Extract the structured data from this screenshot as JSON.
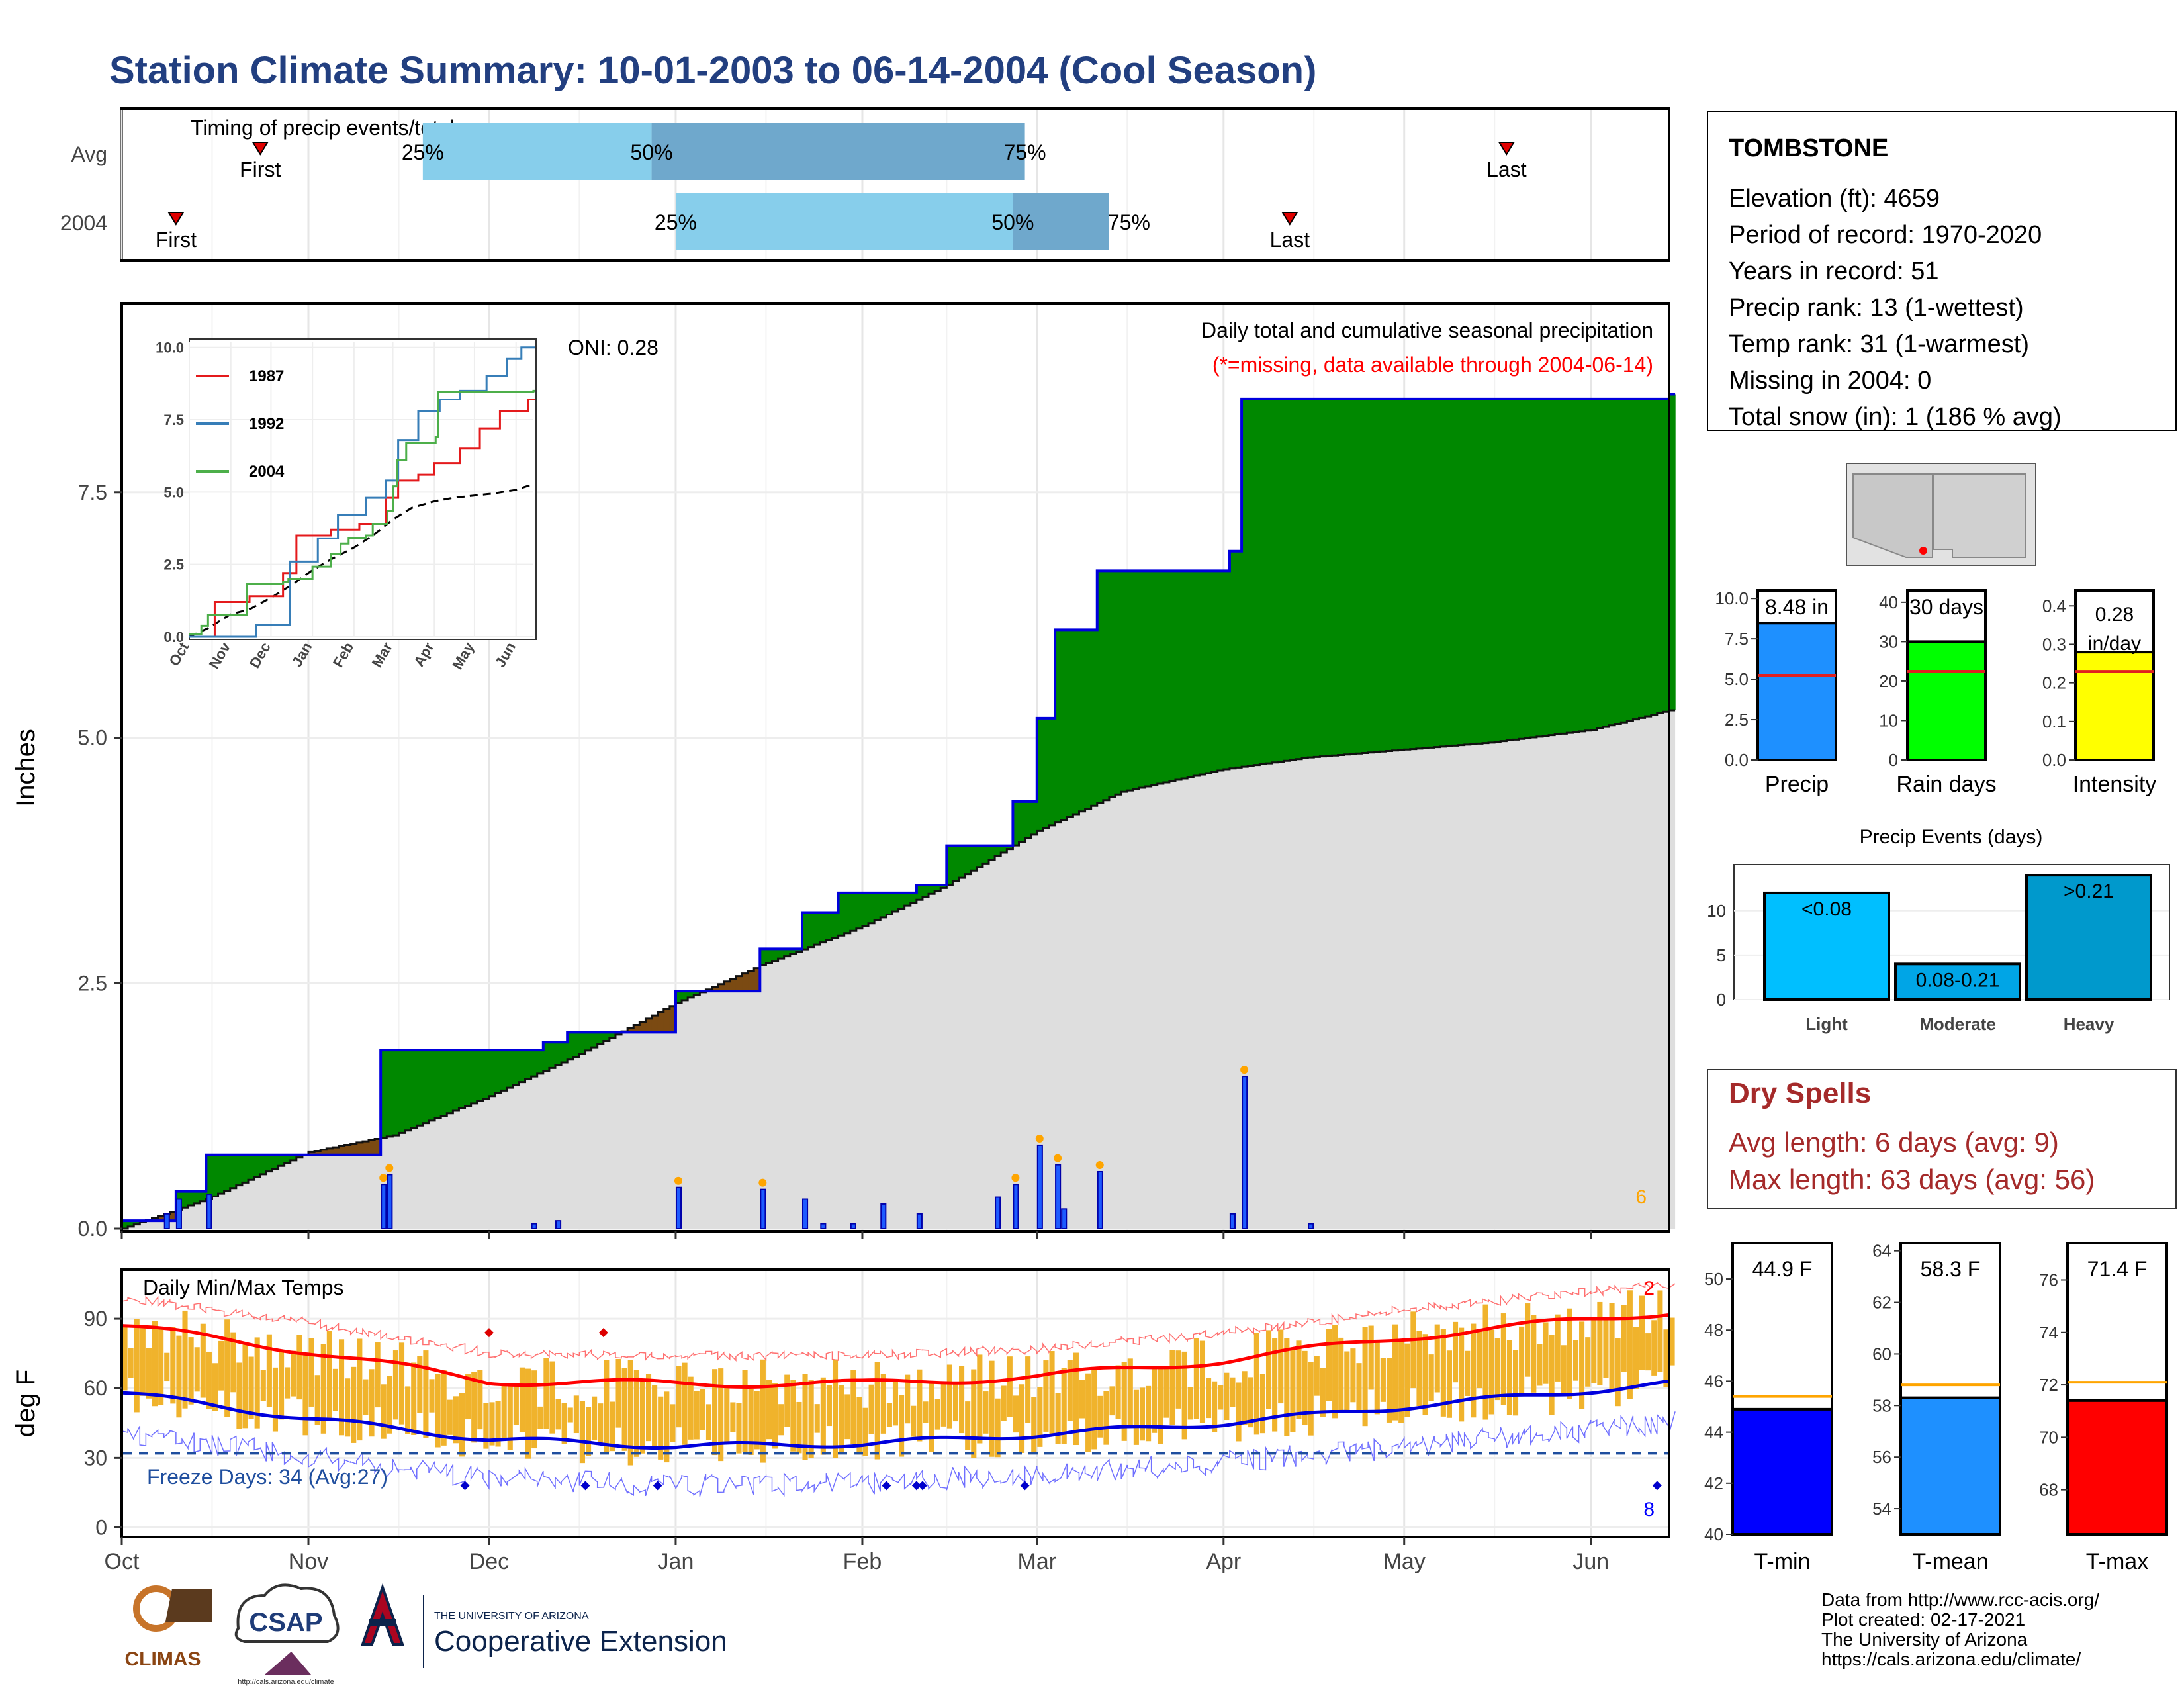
{
  "title": "Station Climate Summary: 10-01-2003 to 06-14-2004 (Cool Season)",
  "timing": {
    "title": "Timing of precip events/totals",
    "rows": [
      {
        "label": "Avg",
        "first": "2003-10-24",
        "last": "2004-05-18",
        "p25": "2003-11-20",
        "p50": "2003-12-28",
        "p75": "2004-02-28",
        "p25_label": "25%",
        "p50_label": "50%",
        "p75_label": "75%"
      },
      {
        "label": "2004",
        "first": "2003-10-10",
        "last": "2004-04-12",
        "p25": "2004-01-01",
        "p50": "2004-02-26",
        "p75": "2004-03-13",
        "p25_label": "25%",
        "p50_label": "50%",
        "p75_label": "75%"
      }
    ],
    "first_label": "First",
    "last_label": "Last"
  },
  "precip_panel": {
    "ylabel": "Inches",
    "annotation_title": "Daily total and cumulative seasonal precipitation",
    "annotation_missing": "(*=missing, data available through 2004-06-14)",
    "oni": "ONI: 0.28",
    "count_label": "6",
    "yticks": [
      "0.0",
      "2.5",
      "5.0",
      "7.5"
    ]
  },
  "temp_panel": {
    "title": "Daily Min/Max Temps",
    "ylabel": "deg F",
    "freeze": "Freeze Days: 34 (Avg:27)",
    "hot_count": "2",
    "cold_count": "8",
    "yticks": [
      "0",
      "30",
      "60",
      "90"
    ],
    "xticks": [
      "Oct",
      "Nov",
      "Dec",
      "Jan",
      "Feb",
      "Mar",
      "Apr",
      "May",
      "Jun"
    ]
  },
  "inset": {
    "legend": [
      "1987",
      "1992",
      "2004"
    ],
    "yticks": [
      "0.0",
      "2.5",
      "5.0",
      "7.5",
      "10.0"
    ],
    "xticks": [
      "Oct",
      "Nov",
      "Dec",
      "Jan",
      "Feb",
      "Mar",
      "Apr",
      "May",
      "Jun"
    ]
  },
  "info": {
    "station": "TOMBSTONE",
    "lines": [
      "Elevation (ft): 4659",
      "Period of record: 1970-2020",
      "Years in record: 51",
      "Precip rank: 13 (1-wettest)",
      "Temp rank: 31 (1-warmest)",
      "Missing in 2004: 0",
      "Total snow (in): 1 (186 % avg)"
    ]
  },
  "mini_bars": [
    {
      "label": "Precip",
      "value": 8.48,
      "value_label": "8.48 in",
      "avg": 5.25,
      "max": 10.5,
      "ticks": [
        "0.0",
        "2.5",
        "5.0",
        "7.5",
        "10.0"
      ],
      "color": "#1E90FF"
    },
    {
      "label": "Rain days",
      "value": 30,
      "value_label": "30 days",
      "avg": 22.5,
      "max": 43,
      "ticks": [
        "0",
        "10",
        "20",
        "30",
        "40"
      ],
      "color": "#00FF00"
    },
    {
      "label": "Intensity",
      "value": 0.28,
      "value_label": "0.28 in/day",
      "avg": 0.23,
      "max": 0.44,
      "ticks": [
        "0.0",
        "0.1",
        "0.2",
        "0.3",
        "0.4"
      ],
      "color": "#FFFF00"
    }
  ],
  "events": {
    "title": "Precip Events (days)",
    "categories": [
      "Light",
      "Moderate",
      "Heavy"
    ],
    "values": [
      12,
      4,
      14
    ],
    "labels": [
      "<0.08",
      "0.08-0.21",
      ">0.21"
    ],
    "ticks": [
      "0",
      "5",
      "10"
    ],
    "colors": [
      "#00BFFF",
      "#00A5E6",
      "#0099CC"
    ]
  },
  "dry_spells": {
    "title": "Dry Spells",
    "avg": "Avg length: 6 days (avg: 9)",
    "max": "Max length: 63 days (avg: 56)"
  },
  "temp_bars": [
    {
      "label": "T-min",
      "value": 44.9,
      "value_label": "44.9 F",
      "avg": 45.4,
      "min": 40,
      "max": 51.4,
      "ticks": [
        "40",
        "42",
        "44",
        "46",
        "48",
        "50"
      ],
      "color": "#0000FF"
    },
    {
      "label": "T-mean",
      "value": 58.3,
      "value_label": "58.3 F",
      "avg": 58.8,
      "min": 53,
      "max": 64.3,
      "ticks": [
        "54",
        "56",
        "58",
        "60",
        "62",
        "64"
      ],
      "color": "#1E90FF"
    },
    {
      "label": "T-max",
      "value": 71.4,
      "value_label": "71.4 F",
      "avg": 72.1,
      "min": 66.3,
      "max": 77.4,
      "ticks": [
        "68",
        "70",
        "72",
        "74",
        "76"
      ],
      "color": "#FF0000"
    }
  ],
  "footer": {
    "lines": [
      "Data from http://www.rcc-acis.org/",
      "Plot created: 02-17-2021",
      "The University of Arizona",
      "https://cals.arizona.edu/climate/"
    ],
    "logo_climas": "CLIMAS",
    "logo_csap": "CSAP",
    "logo_csap_url": "http://cals.arizona.edu/climate",
    "logo_ua_small": "THE UNIVERSITY OF ARIZONA",
    "logo_ua_big": "Cooperative Extension"
  },
  "chart_data": {
    "type": "area",
    "title": "Daily total and cumulative seasonal precipitation",
    "ylabel": "Inches",
    "ylim": [
      0,
      9.4
    ],
    "start": "2003-10-01",
    "end": "2004-06-14",
    "series": [
      {
        "name": "2004 cumulative",
        "x": [
          "2003-10-01",
          "2003-10-10",
          "2003-10-15",
          "2003-11-13",
          "2003-12-10",
          "2003-12-14",
          "2004-01-01",
          "2004-01-15",
          "2004-01-22",
          "2004-01-28",
          "2004-02-10",
          "2004-02-15",
          "2004-02-26",
          "2004-03-01",
          "2004-03-04",
          "2004-03-11",
          "2004-04-02",
          "2004-04-04",
          "2004-06-14"
        ],
        "values": [
          0.08,
          0.38,
          0.75,
          1.82,
          1.9,
          2.0,
          2.42,
          2.85,
          3.22,
          3.42,
          3.5,
          3.9,
          4.35,
          5.2,
          6.1,
          6.7,
          6.9,
          8.45,
          8.5
        ]
      },
      {
        "name": "Avg cumulative",
        "x": [
          "2003-10-01",
          "2003-10-15",
          "2003-11-01",
          "2003-11-15",
          "2003-12-01",
          "2003-12-15",
          "2004-01-01",
          "2004-01-15",
          "2004-02-01",
          "2004-02-15",
          "2004-03-01",
          "2004-03-15",
          "2004-04-01",
          "2004-04-15",
          "2004-05-01",
          "2004-05-15",
          "2004-06-01",
          "2004-06-14"
        ],
        "values": [
          0.0,
          0.3,
          0.78,
          0.95,
          1.35,
          1.75,
          2.3,
          2.68,
          3.08,
          3.5,
          4.05,
          4.45,
          4.68,
          4.8,
          4.88,
          4.95,
          5.08,
          5.28
        ]
      },
      {
        "name": "Daily precip",
        "type": "bar",
        "x": [
          "2003-10-08",
          "2003-10-10",
          "2003-10-15",
          "2003-11-13",
          "2003-11-14",
          "2003-12-08",
          "2003-12-12",
          "2004-01-01",
          "2004-01-15",
          "2004-01-22",
          "2004-01-25",
          "2004-01-30",
          "2004-02-04",
          "2004-02-10",
          "2004-02-23",
          "2004-02-26",
          "2004-03-01",
          "2004-03-04",
          "2004-03-05",
          "2004-03-11",
          "2004-04-02",
          "2004-04-04",
          "2004-04-15"
        ],
        "values": [
          0.15,
          0.3,
          0.35,
          0.45,
          0.55,
          0.05,
          0.08,
          0.42,
          0.4,
          0.3,
          0.05,
          0.05,
          0.25,
          0.15,
          0.32,
          0.45,
          0.85,
          0.65,
          0.2,
          0.58,
          0.15,
          1.55,
          0.05
        ]
      }
    ]
  },
  "temp_chart_data": {
    "type": "bar",
    "title": "Daily Min/Max Temps",
    "ylabel": "deg F",
    "ylim": [
      -3,
      110
    ],
    "freeze_line": 32,
    "series": [
      {
        "name": "Avg max",
        "x": [
          "2003-10-01",
          "2003-11-01",
          "2003-12-01",
          "2004-01-01",
          "2004-02-01",
          "2004-03-01",
          "2004-04-01",
          "2004-05-01",
          "2004-06-14"
        ],
        "values": [
          87,
          76,
          63,
          62,
          62,
          65,
          72,
          82,
          93
        ]
      },
      {
        "name": "Avg min",
        "x": [
          "2003-10-01",
          "2003-11-01",
          "2003-12-01",
          "2004-01-01",
          "2004-02-01",
          "2004-03-01",
          "2004-04-01",
          "2004-05-01",
          "2004-06-14"
        ],
        "values": [
          58,
          47,
          38,
          35,
          36,
          40,
          45,
          52,
          62
        ]
      }
    ]
  }
}
